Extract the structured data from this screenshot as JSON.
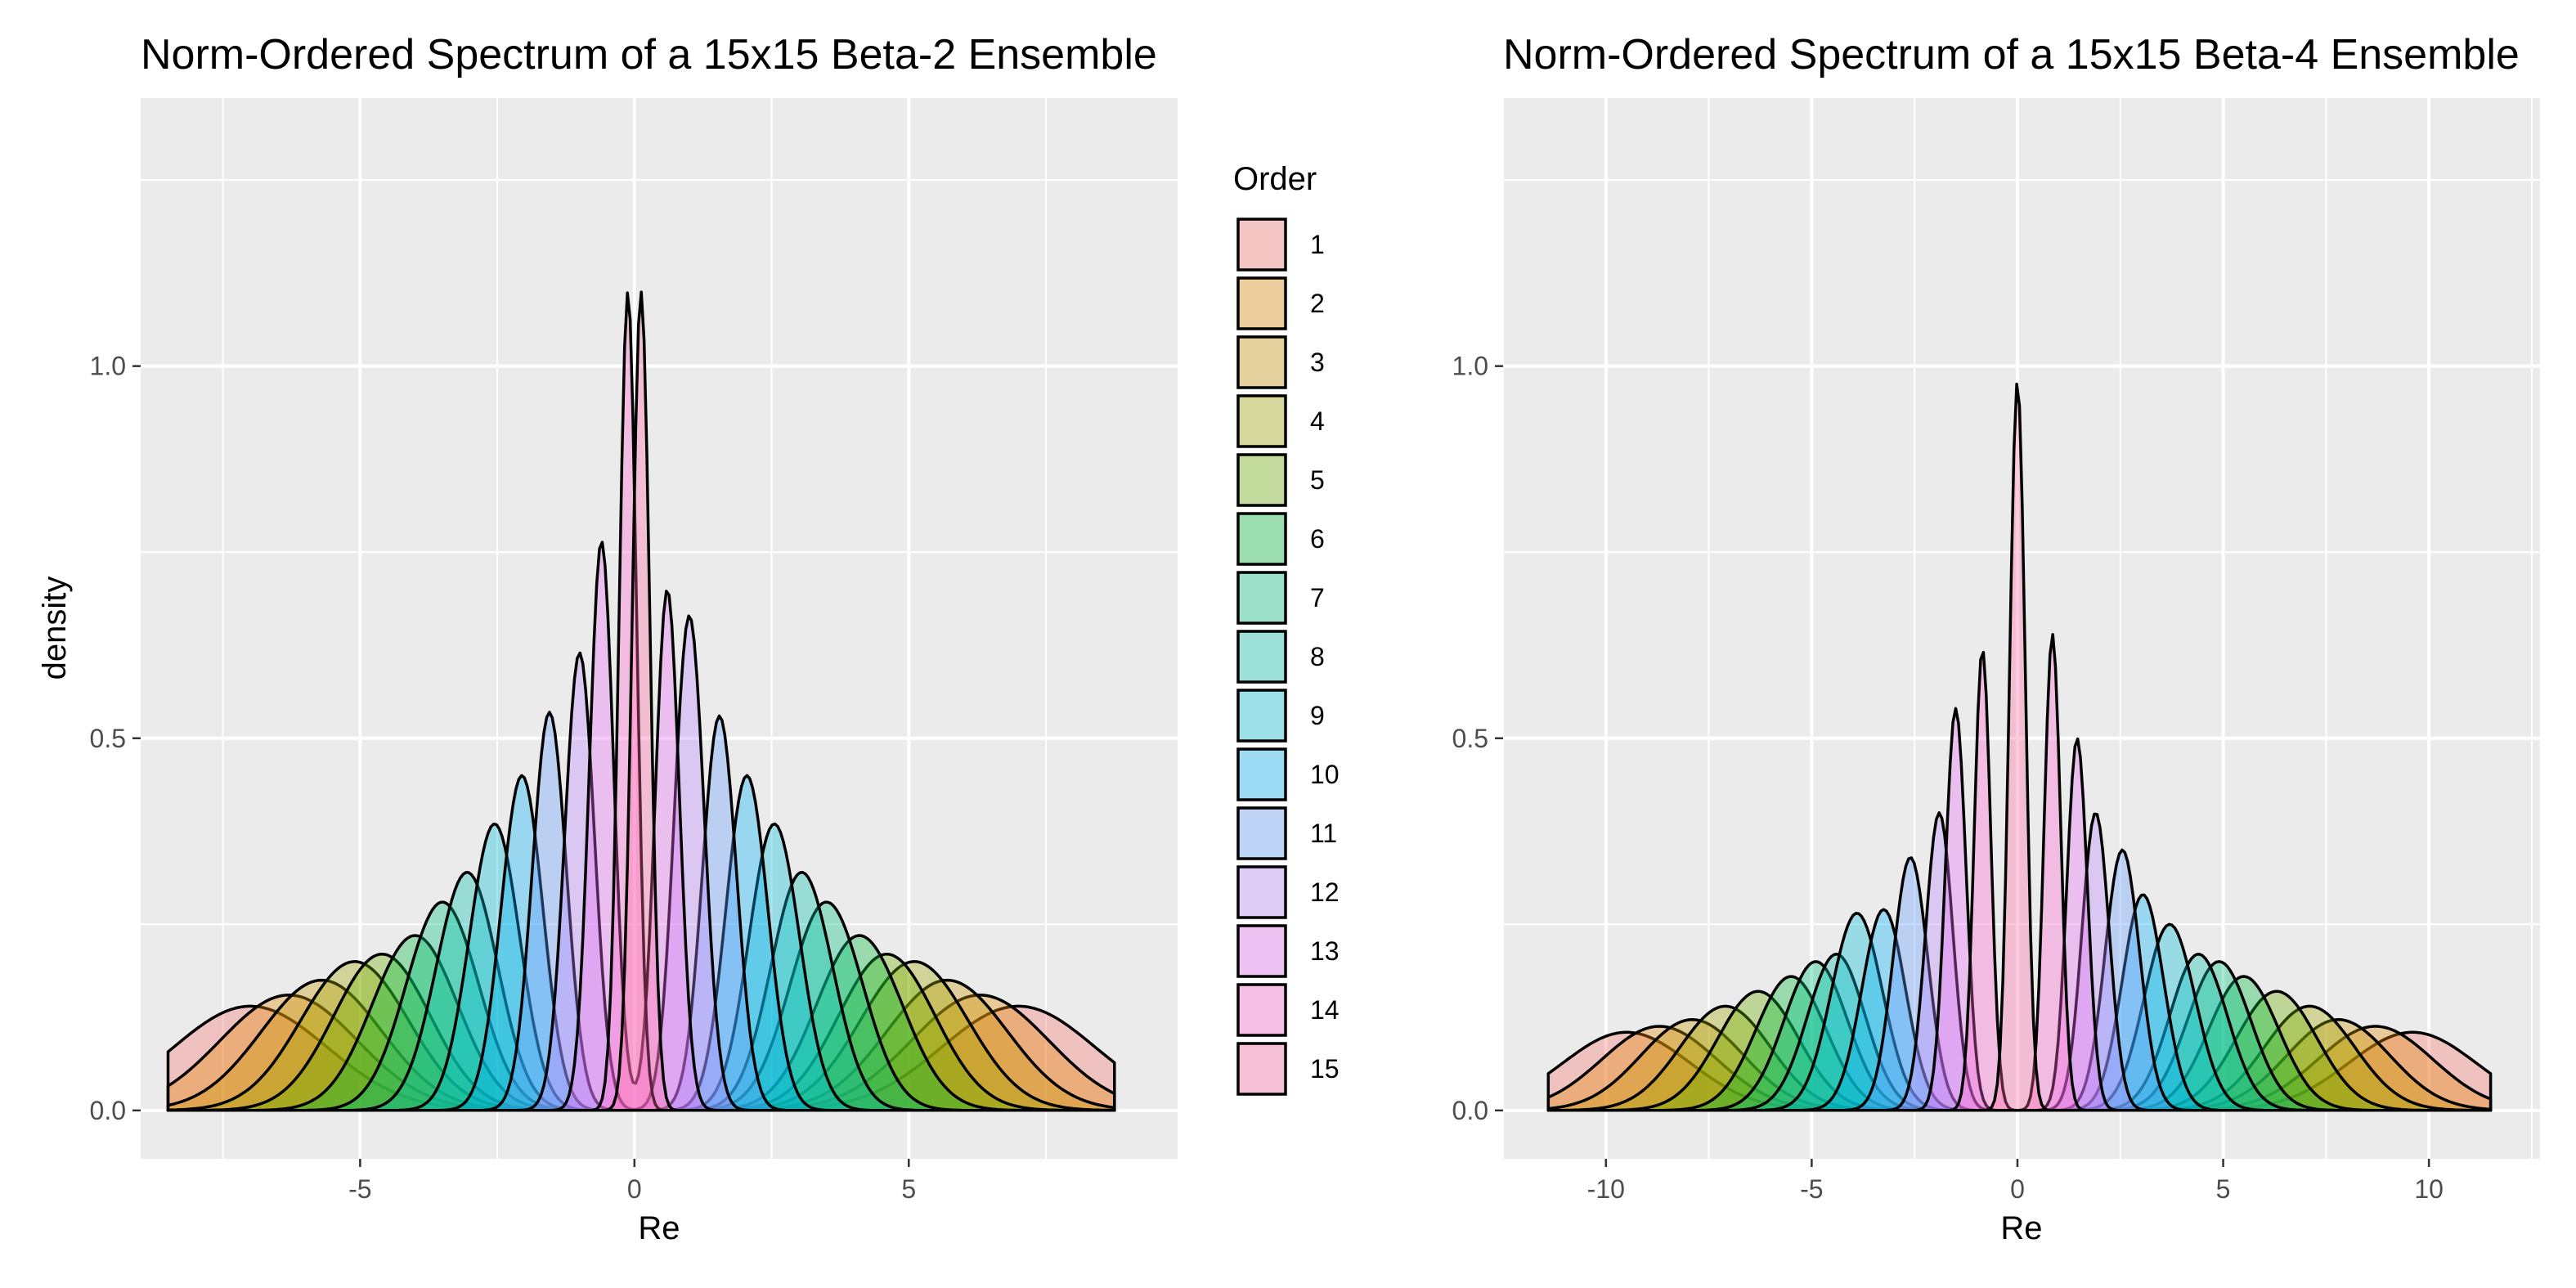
{
  "chart_data": [
    {
      "type": "area",
      "title": "Norm-Ordered Spectrum of a 15x15 Beta-2 Ensemble",
      "xlabel": "Re",
      "ylabel": "density",
      "xlim": [
        -9.0,
        9.9
      ],
      "ylim": [
        -0.065,
        1.36
      ],
      "x_ticks": [
        -5,
        0,
        5
      ],
      "x_tick_labels": [
        "-5",
        "0",
        "5"
      ],
      "y_ticks": [
        0.0,
        0.5,
        1.0
      ],
      "y_tick_labels": [
        "0.0",
        "0.5",
        "1.0"
      ],
      "x_range": [
        -8.5,
        8.75
      ],
      "grid": true,
      "legend_title": "Order",
      "series": [
        {
          "name": "1",
          "modes": [
            {
              "mean": -7.0,
              "sd": 1.4,
              "peak": 0.14
            },
            {
              "mean": 7.0,
              "sd": 1.4,
              "peak": 0.14
            }
          ]
        },
        {
          "name": "2",
          "modes": [
            {
              "mean": -6.3,
              "sd": 1.25,
              "peak": 0.155
            },
            {
              "mean": 6.3,
              "sd": 1.25,
              "peak": 0.155
            }
          ]
        },
        {
          "name": "3",
          "modes": [
            {
              "mean": -5.7,
              "sd": 1.1,
              "peak": 0.175
            },
            {
              "mean": 5.7,
              "sd": 1.1,
              "peak": 0.175
            }
          ]
        },
        {
          "name": "4",
          "modes": [
            {
              "mean": -5.1,
              "sd": 0.98,
              "peak": 0.2
            },
            {
              "mean": 5.1,
              "sd": 0.98,
              "peak": 0.2
            }
          ]
        },
        {
          "name": "5",
          "modes": [
            {
              "mean": -4.6,
              "sd": 0.88,
              "peak": 0.21
            },
            {
              "mean": 4.6,
              "sd": 0.88,
              "peak": 0.21
            }
          ]
        },
        {
          "name": "6",
          "modes": [
            {
              "mean": -4.0,
              "sd": 0.78,
              "peak": 0.235
            },
            {
              "mean": 4.1,
              "sd": 0.78,
              "peak": 0.235
            }
          ]
        },
        {
          "name": "7",
          "modes": [
            {
              "mean": -3.5,
              "sd": 0.66,
              "peak": 0.28
            },
            {
              "mean": 3.5,
              "sd": 0.66,
              "peak": 0.28
            }
          ]
        },
        {
          "name": "8",
          "modes": [
            {
              "mean": -3.05,
              "sd": 0.56,
              "peak": 0.32
            },
            {
              "mean": 3.05,
              "sd": 0.56,
              "peak": 0.32
            }
          ]
        },
        {
          "name": "9",
          "modes": [
            {
              "mean": -2.55,
              "sd": 0.46,
              "peak": 0.385
            },
            {
              "mean": 2.55,
              "sd": 0.46,
              "peak": 0.385
            }
          ]
        },
        {
          "name": "10",
          "modes": [
            {
              "mean": -2.05,
              "sd": 0.38,
              "peak": 0.45
            },
            {
              "mean": 2.05,
              "sd": 0.38,
              "peak": 0.45
            }
          ]
        },
        {
          "name": "11",
          "modes": [
            {
              "mean": -1.55,
              "sd": 0.31,
              "peak": 0.535
            },
            {
              "mean": 1.55,
              "sd": 0.31,
              "peak": 0.53
            }
          ]
        },
        {
          "name": "12",
          "modes": [
            {
              "mean": -1.0,
              "sd": 0.27,
              "peak": 0.615
            },
            {
              "mean": 1.0,
              "sd": 0.27,
              "peak": 0.665
            }
          ]
        },
        {
          "name": "13",
          "modes": [
            {
              "mean": -0.6,
              "sd": 0.22,
              "peak": 0.765
            },
            {
              "mean": 0.6,
              "sd": 0.22,
              "peak": 0.7
            }
          ]
        },
        {
          "name": "14",
          "modes": [
            {
              "mean": -0.12,
              "sd": 0.16,
              "peak": 1.1
            }
          ]
        },
        {
          "name": "15",
          "modes": [
            {
              "mean": 0.12,
              "sd": 0.16,
              "peak": 1.1
            }
          ]
        }
      ]
    },
    {
      "type": "area",
      "title": "Norm-Ordered Spectrum of a 15x15 Beta-4 Ensemble",
      "xlabel": "Re",
      "ylabel": "",
      "xlim": [
        -12.5,
        12.7
      ],
      "ylim": [
        -0.065,
        1.36
      ],
      "x_ticks": [
        -10,
        -5,
        0,
        5,
        10
      ],
      "x_tick_labels": [
        "-10",
        "-5",
        "0",
        "5",
        "10"
      ],
      "y_ticks": [
        0.0,
        0.5,
        1.0
      ],
      "y_tick_labels": [
        "0.0",
        "0.5",
        "1.0"
      ],
      "x_range": [
        -11.4,
        11.5
      ],
      "grid": true,
      "series": [
        {
          "name": "1",
          "modes": [
            {
              "mean": -9.5,
              "sd": 1.55,
              "peak": 0.105
            },
            {
              "mean": 9.6,
              "sd": 1.55,
              "peak": 0.105
            }
          ]
        },
        {
          "name": "2",
          "modes": [
            {
              "mean": -8.7,
              "sd": 1.4,
              "peak": 0.113
            },
            {
              "mean": 8.7,
              "sd": 1.4,
              "peak": 0.113
            }
          ]
        },
        {
          "name": "3",
          "modes": [
            {
              "mean": -7.9,
              "sd": 1.25,
              "peak": 0.122
            },
            {
              "mean": 7.8,
              "sd": 1.25,
              "peak": 0.122
            }
          ]
        },
        {
          "name": "4",
          "modes": [
            {
              "mean": -7.1,
              "sd": 1.1,
              "peak": 0.14
            },
            {
              "mean": 7.1,
              "sd": 1.1,
              "peak": 0.14
            }
          ]
        },
        {
          "name": "5",
          "modes": [
            {
              "mean": -6.3,
              "sd": 0.98,
              "peak": 0.16
            },
            {
              "mean": 6.3,
              "sd": 0.98,
              "peak": 0.16
            }
          ]
        },
        {
          "name": "6",
          "modes": [
            {
              "mean": -5.5,
              "sd": 0.85,
              "peak": 0.18
            },
            {
              "mean": 5.5,
              "sd": 0.85,
              "peak": 0.18
            }
          ]
        },
        {
          "name": "7",
          "modes": [
            {
              "mean": -4.9,
              "sd": 0.77,
              "peak": 0.2
            },
            {
              "mean": 4.9,
              "sd": 0.77,
              "peak": 0.2
            }
          ]
        },
        {
          "name": "8",
          "modes": [
            {
              "mean": -4.4,
              "sd": 0.7,
              "peak": 0.21
            },
            {
              "mean": 4.4,
              "sd": 0.7,
              "peak": 0.21
            }
          ]
        },
        {
          "name": "9",
          "modes": [
            {
              "mean": -3.9,
              "sd": 0.62,
              "peak": 0.265
            },
            {
              "mean": 3.7,
              "sd": 0.62,
              "peak": 0.25
            }
          ]
        },
        {
          "name": "10",
          "modes": [
            {
              "mean": -3.25,
              "sd": 0.53,
              "peak": 0.27
            },
            {
              "mean": 3.05,
              "sd": 0.5,
              "peak": 0.29
            }
          ]
        },
        {
          "name": "11",
          "modes": [
            {
              "mean": -2.6,
              "sd": 0.42,
              "peak": 0.34
            },
            {
              "mean": 2.55,
              "sd": 0.42,
              "peak": 0.35
            }
          ]
        },
        {
          "name": "12",
          "modes": [
            {
              "mean": -1.9,
              "sd": 0.33,
              "peak": 0.4
            },
            {
              "mean": 1.9,
              "sd": 0.33,
              "peak": 0.4
            }
          ]
        },
        {
          "name": "13",
          "modes": [
            {
              "mean": -1.5,
              "sd": 0.25,
              "peak": 0.54
            },
            {
              "mean": 1.45,
              "sd": 0.25,
              "peak": 0.5
            }
          ]
        },
        {
          "name": "14",
          "modes": [
            {
              "mean": -0.85,
              "sd": 0.2,
              "peak": 0.62
            },
            {
              "mean": 0.85,
              "sd": 0.2,
              "peak": 0.64
            }
          ]
        },
        {
          "name": "15",
          "modes": [
            {
              "mean": 0.0,
              "sd": 0.19,
              "peak": 0.98
            }
          ]
        }
      ]
    }
  ],
  "legend": {
    "title": "Order",
    "entries": [
      "1",
      "2",
      "3",
      "4",
      "5",
      "6",
      "7",
      "8",
      "9",
      "10",
      "11",
      "12",
      "13",
      "14",
      "15"
    ],
    "colors": [
      "#F8766D",
      "#E58700",
      "#C99800",
      "#A3A500",
      "#6BB100",
      "#00BA38",
      "#00BF7D",
      "#00C0AF",
      "#00BCD8",
      "#00B0F6",
      "#619CFF",
      "#B983FF",
      "#E76BF3",
      "#FD61D1",
      "#FF67A4"
    ]
  },
  "style": {
    "panel_bg": "#EBEBEB",
    "grid_major": "#FFFFFF",
    "outline": "#000000",
    "fill_opacity": 0.35
  }
}
